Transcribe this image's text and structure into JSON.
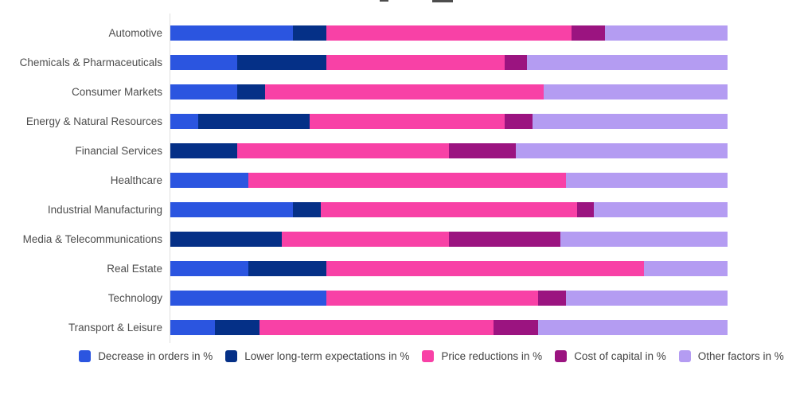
{
  "chart_data": {
    "type": "bar",
    "variant": "horizontal-stacked",
    "title_cropped_at_top": true,
    "x_range": [
      0,
      100
    ],
    "unit": "%",
    "legend_position": "bottom",
    "grid": false,
    "categories": [
      "Automotive",
      "Chemicals & Pharmaceuticals",
      "Consumer Markets",
      "Energy & Natural Resources",
      "Financial Services",
      "Healthcare",
      "Industrial Manufacturing",
      "Media & Telecommunications",
      "Real Estate",
      "Technology",
      "Transport & Leisure"
    ],
    "series": [
      {
        "name": "Decrease in orders in %",
        "color": "#2B55E0",
        "values": [
          22,
          12,
          12,
          5,
          0,
          14,
          22,
          0,
          14,
          28,
          8
        ]
      },
      {
        "name": "Lower long-term expectations in %",
        "color": "#053087",
        "values": [
          6,
          16,
          5,
          20,
          12,
          0,
          5,
          20,
          14,
          0,
          8
        ]
      },
      {
        "name": "Price reductions in %",
        "color": "#F841A6",
        "values": [
          44,
          32,
          50,
          35,
          38,
          57,
          46,
          30,
          57,
          38,
          42
        ]
      },
      {
        "name": "Cost of capital in %",
        "color": "#9B1480",
        "values": [
          6,
          4,
          0,
          5,
          12,
          0,
          3,
          20,
          0,
          5,
          8
        ]
      },
      {
        "name": "Other factors in %",
        "color": "#B49CF2",
        "values": [
          22,
          36,
          33,
          35,
          38,
          29,
          24,
          30,
          15,
          29,
          34
        ]
      }
    ]
  }
}
